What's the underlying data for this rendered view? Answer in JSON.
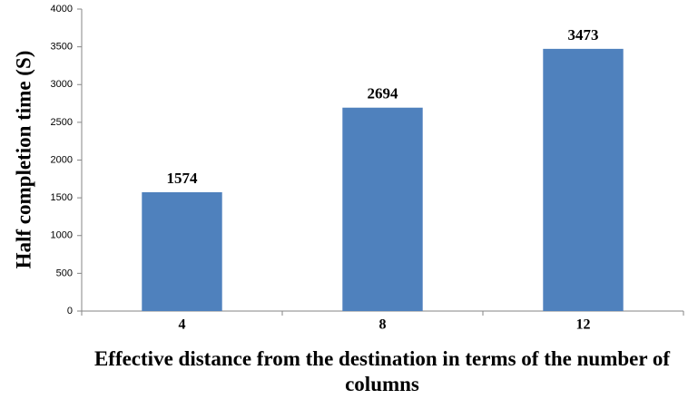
{
  "chart_data": {
    "type": "bar",
    "x_label": "Effective distance from the destination in terms of the number of columns",
    "y_label": "Half completion time (S)",
    "categories": [
      "4",
      "8",
      "12"
    ],
    "values": [
      1574,
      2694,
      3473
    ],
    "color": "#4f81bd",
    "ylim": [
      0,
      4000
    ],
    "yticks": [
      0,
      500,
      1000,
      1500,
      2000,
      2500,
      3000,
      3500,
      4000
    ],
    "grid": false
  }
}
